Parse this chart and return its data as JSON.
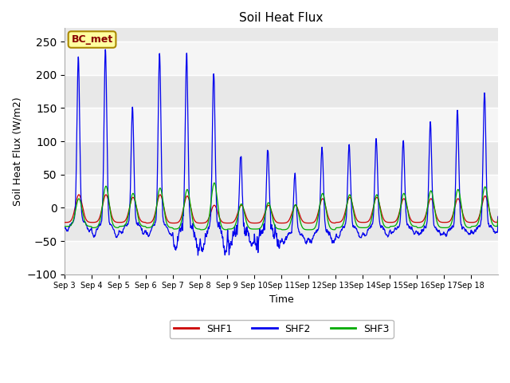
{
  "title": "Soil Heat Flux",
  "xlabel": "Time",
  "ylabel": "Soil Heat Flux (W/m2)",
  "ylim": [
    -100,
    270
  ],
  "yticks": [
    -100,
    -50,
    0,
    50,
    100,
    150,
    200,
    250
  ],
  "color_shf1": "#cc0000",
  "color_shf2": "#0000ee",
  "color_shf3": "#00aa00",
  "legend_label": "BC_met",
  "series_labels": [
    "SHF1",
    "SHF2",
    "SHF3"
  ],
  "plot_bg": "#e8e8e8",
  "white_band_color": "#f0f0f0",
  "days": [
    3,
    4,
    5,
    6,
    7,
    8,
    9,
    10,
    11,
    12,
    13,
    14,
    15,
    16,
    17,
    18
  ],
  "shf2_peaks": [
    228,
    240,
    152,
    235,
    233,
    205,
    80,
    89,
    50,
    93,
    95,
    104,
    103,
    130,
    147,
    175
  ],
  "shf1_peaks": [
    20,
    20,
    16,
    20,
    18,
    4,
    4,
    4,
    4,
    14,
    16,
    16,
    14,
    14,
    14,
    18
  ],
  "shf3_peaks": [
    14,
    33,
    22,
    30,
    28,
    38,
    6,
    8,
    5,
    22,
    20,
    20,
    22,
    26,
    28,
    32
  ],
  "shf2_base": [
    -20,
    -25,
    -25,
    -25,
    -30,
    -28,
    -35,
    -35,
    -38,
    -35,
    -28,
    -28,
    -28,
    -30,
    -30,
    -28
  ],
  "shf2_neg_deep": [
    -35,
    -43,
    -38,
    -42,
    -62,
    -65,
    -57,
    -55,
    -52,
    -52,
    -45,
    -42,
    -38,
    -40,
    -40,
    -38
  ],
  "shf1_base": [
    -22,
    -22,
    -22,
    -23,
    -23,
    -23,
    -23,
    -23,
    -23,
    -23,
    -22,
    -22,
    -22,
    -22,
    -22,
    -22
  ],
  "shf3_base": [
    -28,
    -30,
    -28,
    -30,
    -32,
    -33,
    -32,
    -32,
    -33,
    -33,
    -30,
    -30,
    -28,
    -30,
    -30,
    -28
  ]
}
